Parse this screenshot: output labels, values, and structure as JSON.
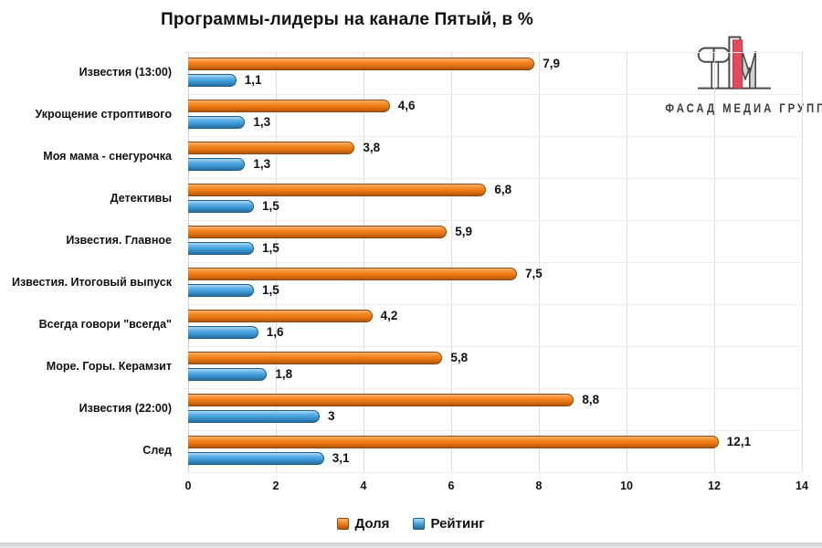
{
  "chart_data": {
    "type": "bar",
    "orientation": "horizontal",
    "title": "Программы-лидеры на канале Пятый, в %",
    "categories": [
      "Известия (13:00)",
      "Укрощение строптивого",
      "Моя мама - снегурочка",
      "Детективы",
      "Известия. Главное",
      "Известия. Итоговый выпуск",
      "Всегда говори \"всегда\"",
      "Море. Горы. Керамзит",
      "Известия (22:00)",
      "След"
    ],
    "series": [
      {
        "name": "Доля",
        "color": "#ED7D31",
        "values": [
          7.9,
          4.6,
          3.8,
          6.8,
          5.9,
          7.5,
          4.2,
          5.8,
          8.8,
          12.1
        ],
        "labels": [
          "7,9",
          "4,6",
          "3,8",
          "6,8",
          "5,9",
          "7,5",
          "4,2",
          "5,8",
          "8,8",
          "12,1"
        ]
      },
      {
        "name": "Рейтинг",
        "color": "#41A0DC",
        "values": [
          1.1,
          1.3,
          1.3,
          1.5,
          1.5,
          1.5,
          1.6,
          1.8,
          3,
          3.1
        ],
        "labels": [
          "1,1",
          "1,3",
          "1,3",
          "1,5",
          "1,5",
          "1,5",
          "1,6",
          "1,8",
          "3",
          "3,1"
        ]
      }
    ],
    "x_axis": {
      "min": 0,
      "max": 14,
      "ticks": [
        0,
        2,
        4,
        6,
        8,
        10,
        12,
        14
      ]
    },
    "grid": "vertical-and-light-horizontal",
    "legend_position": "bottom"
  },
  "logo": {
    "text": "ФАСАД МЕДИА ГРУПП",
    "accent_red": "#E34B5A",
    "outline_gray": "#4a4a4a"
  }
}
